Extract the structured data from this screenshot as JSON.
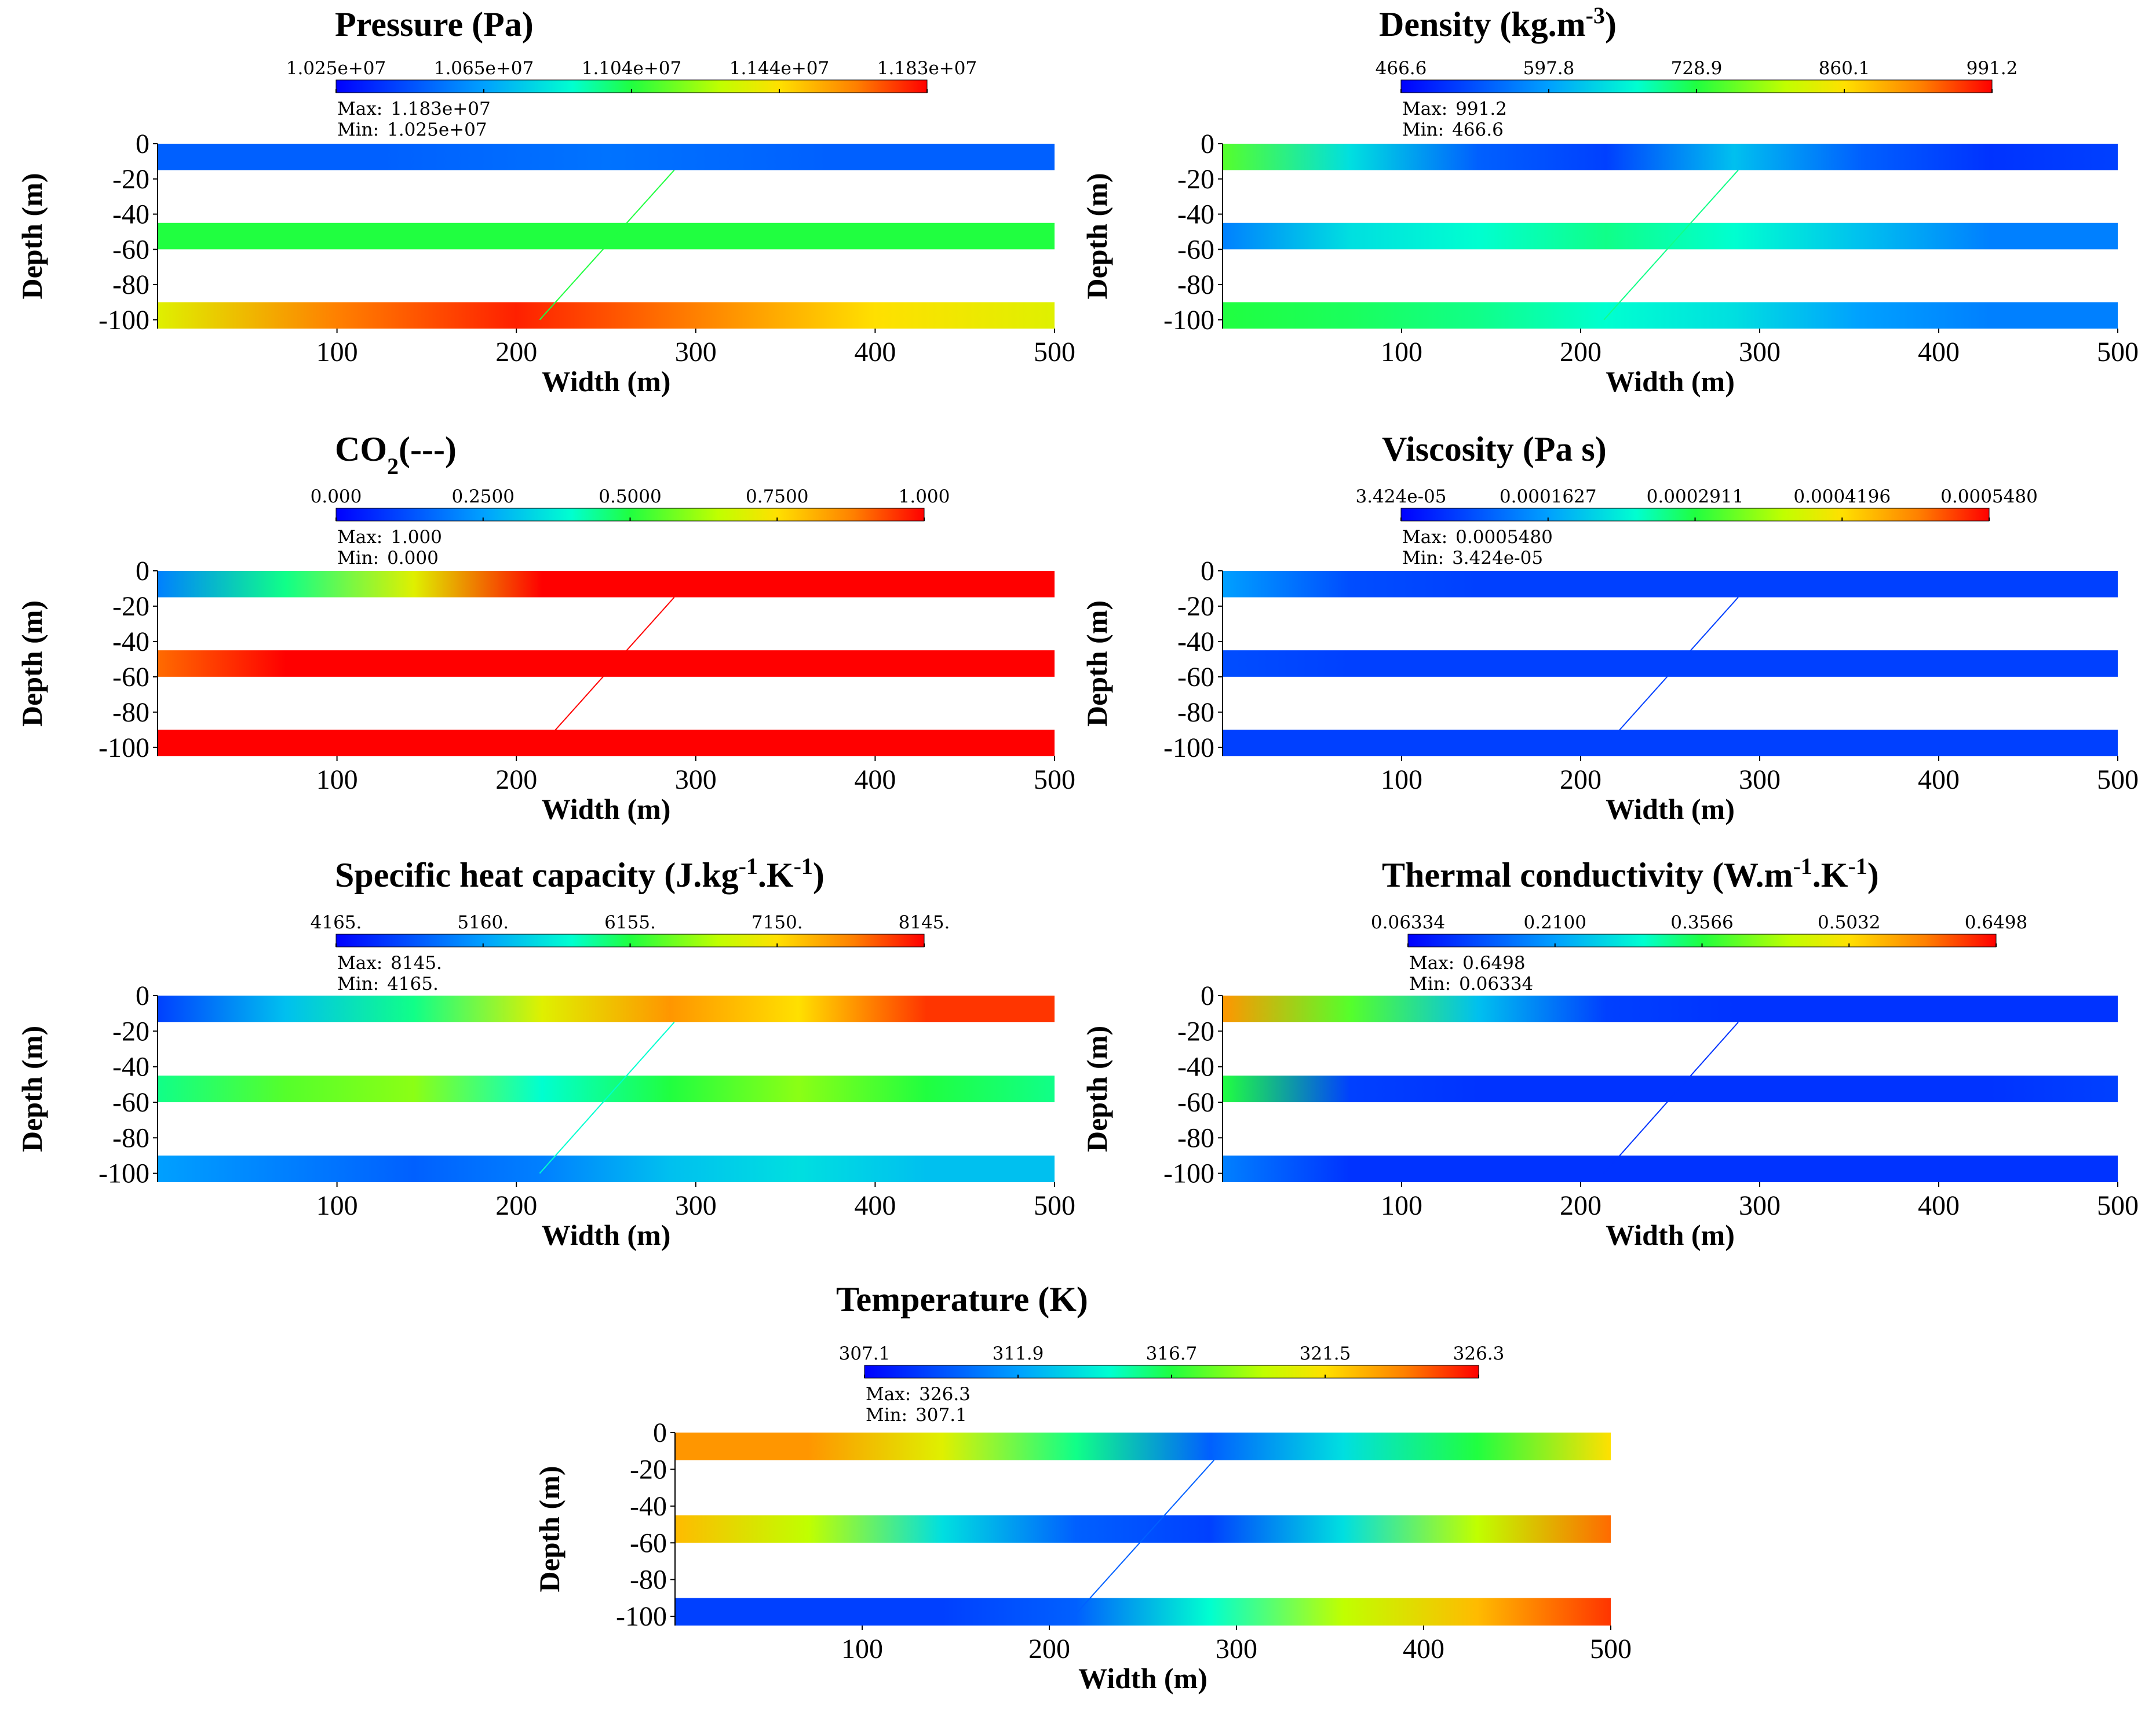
{
  "chart_data": [
    {
      "id": "pressure",
      "type": "heatmap",
      "title": "Pressure (Pa)",
      "title_sup": "",
      "title_sub": "",
      "colorbar_ticks": [
        "1.025e+07",
        "1.065e+07",
        "1.104e+07",
        "1.144e+07",
        "1.183e+07"
      ],
      "max_label": "Max:",
      "max_value": "1.183e+07",
      "min_label": "Min:",
      "min_value": "1.025e+07",
      "xlabel": "Width (m)",
      "ylabel": "Depth (m)",
      "xticks": [
        "100",
        "200",
        "300",
        "400",
        "500"
      ],
      "yticks": [
        "0",
        "-20",
        "-40",
        "-60",
        "-80",
        "-100"
      ],
      "xlim": [
        0,
        500
      ],
      "ylim": [
        -105,
        0
      ],
      "layers": [
        {
          "depth_range": [
            -15,
            0
          ],
          "field": [
            0.15,
            0.15,
            0.18,
            0.15,
            0.15
          ]
        },
        {
          "depth_range": [
            -60,
            -45
          ],
          "field": [
            0.5,
            0.5,
            0.5,
            0.5,
            0.5
          ]
        },
        {
          "depth_range": [
            -105,
            -90
          ],
          "field": [
            0.7,
            0.88,
            0.97,
            0.88,
            0.75,
            0.7
          ]
        }
      ],
      "fault_line": [
        [
          213,
          -100
        ],
        [
          288,
          -15
        ]
      ]
    },
    {
      "id": "density",
      "type": "heatmap",
      "title": "Density (kg.m",
      "title_sup": "-3",
      "title_tail": ")",
      "colorbar_ticks": [
        "466.6",
        "597.8",
        "728.9",
        "860.1",
        "991.2"
      ],
      "max_label": "Max:",
      "max_value": "991.2",
      "min_label": "Min:",
      "min_value": "466.6",
      "xlabel": "Width (m)",
      "ylabel": "Depth (m)",
      "xticks": [
        "100",
        "200",
        "300",
        "400",
        "500"
      ],
      "yticks": [
        "0",
        "-20",
        "-40",
        "-60",
        "-80",
        "-100"
      ],
      "xlim": [
        0,
        500
      ],
      "ylim": [
        -105,
        0
      ],
      "layers": [
        {
          "depth_range": [
            -15,
            0
          ],
          "field": [
            0.55,
            0.35,
            0.15,
            0.1,
            0.3,
            0.15,
            0.08,
            0.1
          ]
        },
        {
          "depth_range": [
            -60,
            -45
          ],
          "field": [
            0.2,
            0.35,
            0.4,
            0.45,
            0.4,
            0.3,
            0.2,
            0.2
          ]
        },
        {
          "depth_range": [
            -105,
            -90
          ],
          "field": [
            0.5,
            0.48,
            0.45,
            0.4,
            0.35,
            0.25,
            0.2,
            0.2
          ]
        }
      ],
      "fault_line": [
        [
          213,
          -100
        ],
        [
          288,
          -15
        ]
      ]
    },
    {
      "id": "co2",
      "type": "heatmap",
      "title": "CO",
      "title_sub": "2",
      "title_tail": "(---)",
      "colorbar_ticks": [
        "0.000",
        "0.2500",
        "0.5000",
        "0.7500",
        "1.000"
      ],
      "max_label": "Max:",
      "max_value": "1.000",
      "min_label": "Min:",
      "min_value": "0.000",
      "xlabel": "Width (m)",
      "ylabel": "Depth (m)",
      "xticks": [
        "100",
        "200",
        "300",
        "400",
        "500"
      ],
      "yticks": [
        "0",
        "-20",
        "-40",
        "-60",
        "-80",
        "-100"
      ],
      "xlim": [
        0,
        500
      ],
      "ylim": [
        -105,
        0
      ],
      "layers": [
        {
          "depth_range": [
            -15,
            0
          ],
          "field": [
            0.2,
            0.45,
            0.7,
            1.0,
            1.0,
            1.0,
            1.0,
            1.0
          ]
        },
        {
          "depth_range": [
            -60,
            -45
          ],
          "field": [
            0.9,
            1.0,
            1.0,
            1.0,
            1.0,
            1.0,
            1.0,
            1.0
          ]
        },
        {
          "depth_range": [
            -105,
            -90
          ],
          "field": [
            1.0,
            1.0,
            1.0,
            1.0,
            1.0,
            1.0,
            1.0,
            1.0
          ]
        }
      ],
      "fault_line": [
        [
          213,
          -100
        ],
        [
          288,
          -15
        ]
      ]
    },
    {
      "id": "viscosity",
      "type": "heatmap",
      "title": "Viscosity (Pa s)",
      "colorbar_ticks": [
        "3.424e-05",
        "0.0001627",
        "0.0002911",
        "0.0004196",
        "0.0005480"
      ],
      "max_label": "Max:",
      "max_value": "0.0005480",
      "min_label": "Min:",
      "min_value": "3.424e-05",
      "xlabel": "Width (m)",
      "ylabel": "Depth (m)",
      "xticks": [
        "100",
        "200",
        "300",
        "400",
        "500"
      ],
      "yticks": [
        "0",
        "-20",
        "-40",
        "-60",
        "-80",
        "-100"
      ],
      "xlim": [
        0,
        500
      ],
      "ylim": [
        -105,
        0
      ],
      "layers": [
        {
          "depth_range": [
            -15,
            0
          ],
          "field": [
            0.25,
            0.12,
            0.1,
            0.1,
            0.1,
            0.1,
            0.1,
            0.1
          ]
        },
        {
          "depth_range": [
            -60,
            -45
          ],
          "field": [
            0.12,
            0.1,
            0.1,
            0.1,
            0.1,
            0.1,
            0.1,
            0.1
          ]
        },
        {
          "depth_range": [
            -105,
            -90
          ],
          "field": [
            0.1,
            0.1,
            0.1,
            0.1,
            0.1,
            0.1,
            0.1,
            0.1
          ]
        }
      ],
      "fault_line": [
        [
          213,
          -100
        ],
        [
          288,
          -15
        ]
      ]
    },
    {
      "id": "cp",
      "type": "heatmap",
      "title": "Specific heat capacity (J.kg",
      "title_sup": "-1",
      "title_mid": ".K",
      "title_sup2": "-1",
      "title_tail": ")",
      "colorbar_ticks": [
        "4165.",
        "5160.",
        "6155.",
        "7150.",
        "8145."
      ],
      "max_label": "Max:",
      "max_value": "8145.",
      "min_label": "Min:",
      "min_value": "4165.",
      "xlabel": "Width (m)",
      "ylabel": "Depth (m)",
      "xticks": [
        "100",
        "200",
        "300",
        "400",
        "500"
      ],
      "yticks": [
        "0",
        "-20",
        "-40",
        "-60",
        "-80",
        "-100"
      ],
      "xlim": [
        0,
        500
      ],
      "ylim": [
        -105,
        0
      ],
      "layers": [
        {
          "depth_range": [
            -15,
            0
          ],
          "field": [
            0.1,
            0.3,
            0.45,
            0.7,
            0.85,
            0.75,
            0.95,
            0.95
          ]
        },
        {
          "depth_range": [
            -60,
            -45
          ],
          "field": [
            0.45,
            0.55,
            0.6,
            0.4,
            0.5,
            0.6,
            0.5,
            0.45
          ]
        },
        {
          "depth_range": [
            -105,
            -90
          ],
          "field": [
            0.25,
            0.2,
            0.15,
            0.2,
            0.3,
            0.35,
            0.3,
            0.3
          ]
        }
      ],
      "fault_line": [
        [
          213,
          -100
        ],
        [
          288,
          -15
        ]
      ]
    },
    {
      "id": "conductivity",
      "type": "heatmap",
      "title": "Thermal conductivity (W.m",
      "title_sup": "-1",
      "title_mid": ".K",
      "title_sup2": "-1",
      "title_tail": ")",
      "colorbar_ticks": [
        "0.06334",
        "0.2100",
        "0.3566",
        "0.5032",
        "0.6498"
      ],
      "max_label": "Max:",
      "max_value": "0.6498",
      "min_label": "Min:",
      "min_value": "0.06334",
      "xlabel": "Width (m)",
      "ylabel": "Depth (m)",
      "xticks": [
        "100",
        "200",
        "300",
        "400",
        "500"
      ],
      "yticks": [
        "0",
        "-20",
        "-40",
        "-60",
        "-80",
        "-100"
      ],
      "xlim": [
        0,
        500
      ],
      "ylim": [
        -105,
        0
      ],
      "layers": [
        {
          "depth_range": [
            -15,
            0
          ],
          "field": [
            0.85,
            0.55,
            0.3,
            0.1,
            0.08,
            0.08,
            0.08,
            0.08
          ]
        },
        {
          "depth_range": [
            -60,
            -45
          ],
          "field": [
            0.5,
            0.1,
            0.08,
            0.08,
            0.08,
            0.08,
            0.08,
            0.1
          ]
        },
        {
          "depth_range": [
            -105,
            -90
          ],
          "field": [
            0.2,
            0.08,
            0.08,
            0.08,
            0.08,
            0.08,
            0.08,
            0.08
          ]
        }
      ],
      "fault_line": [
        [
          213,
          -100
        ],
        [
          288,
          -15
        ]
      ]
    },
    {
      "id": "temperature",
      "type": "heatmap",
      "title": "Temperature (K)",
      "colorbar_ticks": [
        "307.1",
        "311.9",
        "316.7",
        "321.5",
        "326.3"
      ],
      "max_label": "Max:",
      "max_value": "326.3",
      "min_label": "Min:",
      "min_value": "307.1",
      "xlabel": "Width (m)",
      "ylabel": "Depth (m)",
      "xticks": [
        "100",
        "200",
        "300",
        "400",
        "500"
      ],
      "yticks": [
        "0",
        "-20",
        "-40",
        "-60",
        "-80",
        "-100"
      ],
      "xlim": [
        0,
        500
      ],
      "ylim": [
        -105,
        0
      ],
      "layers": [
        {
          "depth_range": [
            -15,
            0
          ],
          "field": [
            0.85,
            0.85,
            0.7,
            0.45,
            0.15,
            0.35,
            0.5,
            0.75
          ]
        },
        {
          "depth_range": [
            -60,
            -45
          ],
          "field": [
            0.8,
            0.65,
            0.35,
            0.15,
            0.1,
            0.35,
            0.65,
            0.9
          ]
        },
        {
          "depth_range": [
            -105,
            -90
          ],
          "field": [
            0.1,
            0.1,
            0.1,
            0.15,
            0.4,
            0.65,
            0.8,
            0.95
          ]
        }
      ],
      "fault_line": [
        [
          213,
          -100
        ],
        [
          288,
          -15
        ]
      ]
    }
  ]
}
